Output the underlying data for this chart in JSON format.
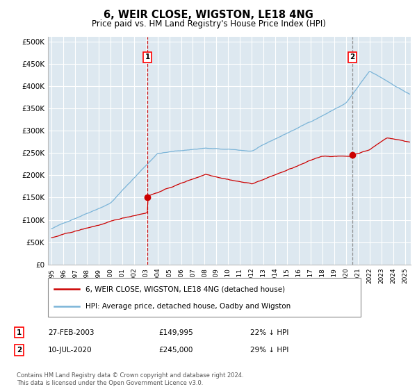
{
  "title": "6, WEIR CLOSE, WIGSTON, LE18 4NG",
  "subtitle": "Price paid vs. HM Land Registry's House Price Index (HPI)",
  "ylabel_ticks": [
    "£0",
    "£50K",
    "£100K",
    "£150K",
    "£200K",
    "£250K",
    "£300K",
    "£350K",
    "£400K",
    "£450K",
    "£500K"
  ],
  "ytick_values": [
    0,
    50000,
    100000,
    150000,
    200000,
    250000,
    300000,
    350000,
    400000,
    450000,
    500000
  ],
  "ylim": [
    0,
    510000
  ],
  "xlim_start": 1994.7,
  "xlim_end": 2025.5,
  "hpi_color": "#7ab4d8",
  "price_color": "#cc0000",
  "background_color": "#dde8f0",
  "grid_color": "#ffffff",
  "sale1_x": 2003.15,
  "sale1_y": 149995,
  "sale1_label": "1",
  "sale1_vline_color": "#cc0000",
  "sale1_vline_style": "--",
  "sale1_date": "27-FEB-2003",
  "sale1_price": "£149,995",
  "sale1_hpi": "22% ↓ HPI",
  "sale2_x": 2020.53,
  "sale2_y": 245000,
  "sale2_label": "2",
  "sale2_vline_color": "#888888",
  "sale2_vline_style": "--",
  "sale2_date": "10-JUL-2020",
  "sale2_price": "£245,000",
  "sale2_hpi": "29% ↓ HPI",
  "legend_line1": "6, WEIR CLOSE, WIGSTON, LE18 4NG (detached house)",
  "legend_line2": "HPI: Average price, detached house, Oadby and Wigston",
  "footnote": "Contains HM Land Registry data © Crown copyright and database right 2024.\nThis data is licensed under the Open Government Licence v3.0.",
  "xtick_years": [
    1995,
    1996,
    1997,
    1998,
    1999,
    2000,
    2001,
    2002,
    2003,
    2004,
    2005,
    2006,
    2007,
    2008,
    2009,
    2010,
    2011,
    2012,
    2013,
    2014,
    2015,
    2016,
    2017,
    2018,
    2019,
    2020,
    2021,
    2022,
    2023,
    2024,
    2025
  ]
}
